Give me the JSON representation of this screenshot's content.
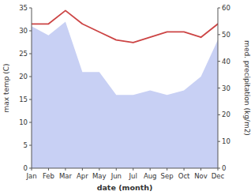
{
  "chart_data": {
    "type": "area",
    "categories": [
      "Jan",
      "Feb",
      "Mar",
      "Apr",
      "May",
      "Jun",
      "Jul",
      "Aug",
      "Sep",
      "Oct",
      "Nov",
      "Dec"
    ],
    "series": [
      {
        "type": "area",
        "color": "#c8d0f4",
        "values": [
          31,
          29,
          32,
          21,
          21,
          16,
          16,
          17,
          16,
          17,
          20,
          28
        ]
      },
      {
        "type": "line",
        "color": "#cc4444",
        "axis": "y2",
        "values": [
          54,
          54,
          59,
          54,
          51,
          48,
          47,
          49,
          51,
          51,
          49,
          54
        ]
      }
    ],
    "xlabel": "date (month)",
    "ylabel": "max temp (C)",
    "y2label": "med. precipitation (kg/m2)",
    "ylim": [
      0,
      35
    ],
    "yticks": [
      0,
      5,
      10,
      15,
      20,
      25,
      30,
      35
    ],
    "y2lim": [
      0,
      60
    ],
    "y2ticks": [
      0,
      10,
      20,
      30,
      40,
      50,
      60
    ]
  }
}
